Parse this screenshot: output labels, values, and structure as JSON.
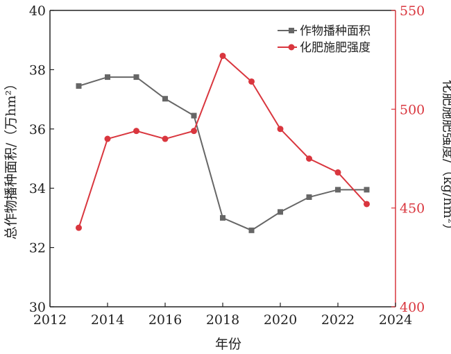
{
  "chart_data": {
    "type": "line",
    "x": [
      2013,
      2014,
      2015,
      2016,
      2017,
      2018,
      2019,
      2020,
      2021,
      2022,
      2023
    ],
    "xlabel": "年份",
    "xlim": [
      2012,
      2024
    ],
    "xticks": [
      2012,
      2014,
      2016,
      2018,
      2020,
      2022,
      2024
    ],
    "ylabel_left": "总作物播种面积/（万hm²）",
    "ylim_left": [
      30,
      40
    ],
    "yticks_left": [
      30,
      32,
      34,
      36,
      38,
      40
    ],
    "ylabel_right": "化肥施肥强度/（kg/hm²）",
    "ylim_right": [
      400,
      550
    ],
    "yticks_right": [
      400,
      450,
      500,
      550
    ],
    "grid": false,
    "legend_position": "top-right",
    "series": [
      {
        "name": "作物播种面积",
        "axis": "left",
        "marker": "square",
        "color": "#666666",
        "values": [
          37.45,
          37.75,
          37.75,
          37.02,
          36.45,
          33.0,
          32.58,
          33.2,
          33.7,
          33.95,
          33.95
        ]
      },
      {
        "name": "化肥施肥强度",
        "axis": "right",
        "marker": "circle",
        "color": "#d9363e",
        "values": [
          440,
          485,
          489,
          485,
          489,
          527,
          514,
          490,
          475,
          468,
          452
        ]
      }
    ]
  }
}
